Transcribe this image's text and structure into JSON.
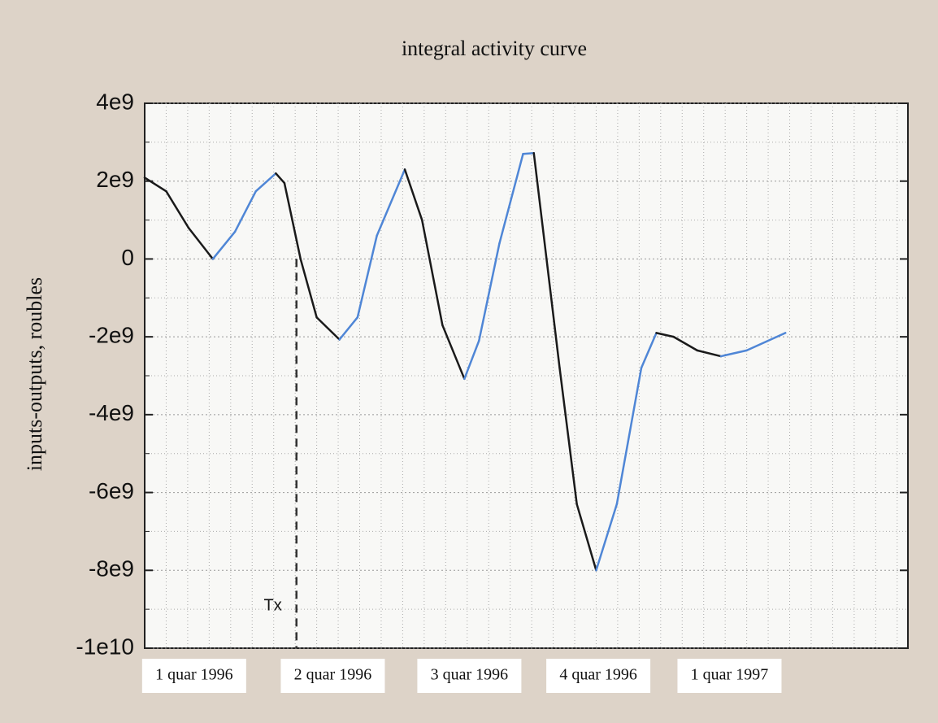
{
  "chart_data": {
    "type": "line",
    "title": "integral activity curve",
    "y_label": "inputs-outputs, roubles",
    "xlim": [
      0,
      35.5
    ],
    "ylim": [
      -10000000000,
      4000000000
    ],
    "yticks": [
      {
        "value": 4000000000,
        "label": "4e9"
      },
      {
        "value": 2000000000,
        "label": "2e9"
      },
      0,
      {
        "value": -2000000000,
        "label": "-2e9"
      },
      {
        "value": -4000000000,
        "label": "-4e9"
      },
      {
        "value": -6000000000,
        "label": "-6e9"
      },
      {
        "value": -8000000000,
        "label": "-8e9"
      },
      {
        "value": -10000000000,
        "label": "-1e10"
      }
    ],
    "minor_yticks": [
      3000000000,
      1000000000,
      -1000000000,
      -3000000000,
      -5000000000,
      -7000000000,
      -9000000000
    ],
    "xticks": [
      {
        "value": 2.3,
        "label": "1 quar 1996"
      },
      {
        "value": 8.75,
        "label": "2 quar 1996"
      },
      {
        "value": 15.1,
        "label": "3 quar 1996"
      },
      {
        "value": 21.1,
        "label": "4 quar 1996"
      },
      {
        "value": 27.2,
        "label": "1 quar 1997"
      }
    ],
    "minor_xticks": [
      1,
      2,
      3,
      4,
      5,
      6,
      7,
      8,
      9,
      10,
      11,
      12,
      13,
      14,
      15,
      16,
      17,
      18,
      19,
      20,
      21,
      22,
      23,
      24,
      25,
      26,
      27,
      28,
      29,
      30,
      31,
      32,
      33,
      34,
      35
    ],
    "grid": true,
    "color": "#1a1a1a",
    "rise_color": "#4f86d6",
    "x": [
      0,
      1.0,
      2.04,
      3.17,
      4.2,
      5.17,
      6.1,
      6.5,
      7.25,
      8.0,
      9.06,
      9.9,
      10.8,
      12.1,
      12.9,
      13.85,
      14.87,
      15.55,
      16.5,
      17.6,
      18.1,
      19.3,
      20.1,
      21.0,
      21.96,
      23.1,
      23.8,
      24.6,
      25.7,
      26.8,
      28.0,
      29.8
    ],
    "values": [
      2090000000,
      1740000000,
      800000000,
      0,
      700000000,
      1740000000,
      2200000000,
      1950000000,
      0,
      -1500000000,
      -2070000000,
      -1500000000,
      600000000,
      2300000000,
      1000000000,
      -1700000000,
      -3080000000,
      -2100000000,
      400000000,
      2700000000,
      2720000000,
      -2800000000,
      -6300000000,
      -8000000000,
      -6300000000,
      -2800000000,
      -1900000000,
      -2000000000,
      -2350000000,
      -2500000000,
      -2350000000,
      -1900000000
    ],
    "annotation": {
      "text": "Tx",
      "x": 7.06,
      "y": 0
    }
  }
}
